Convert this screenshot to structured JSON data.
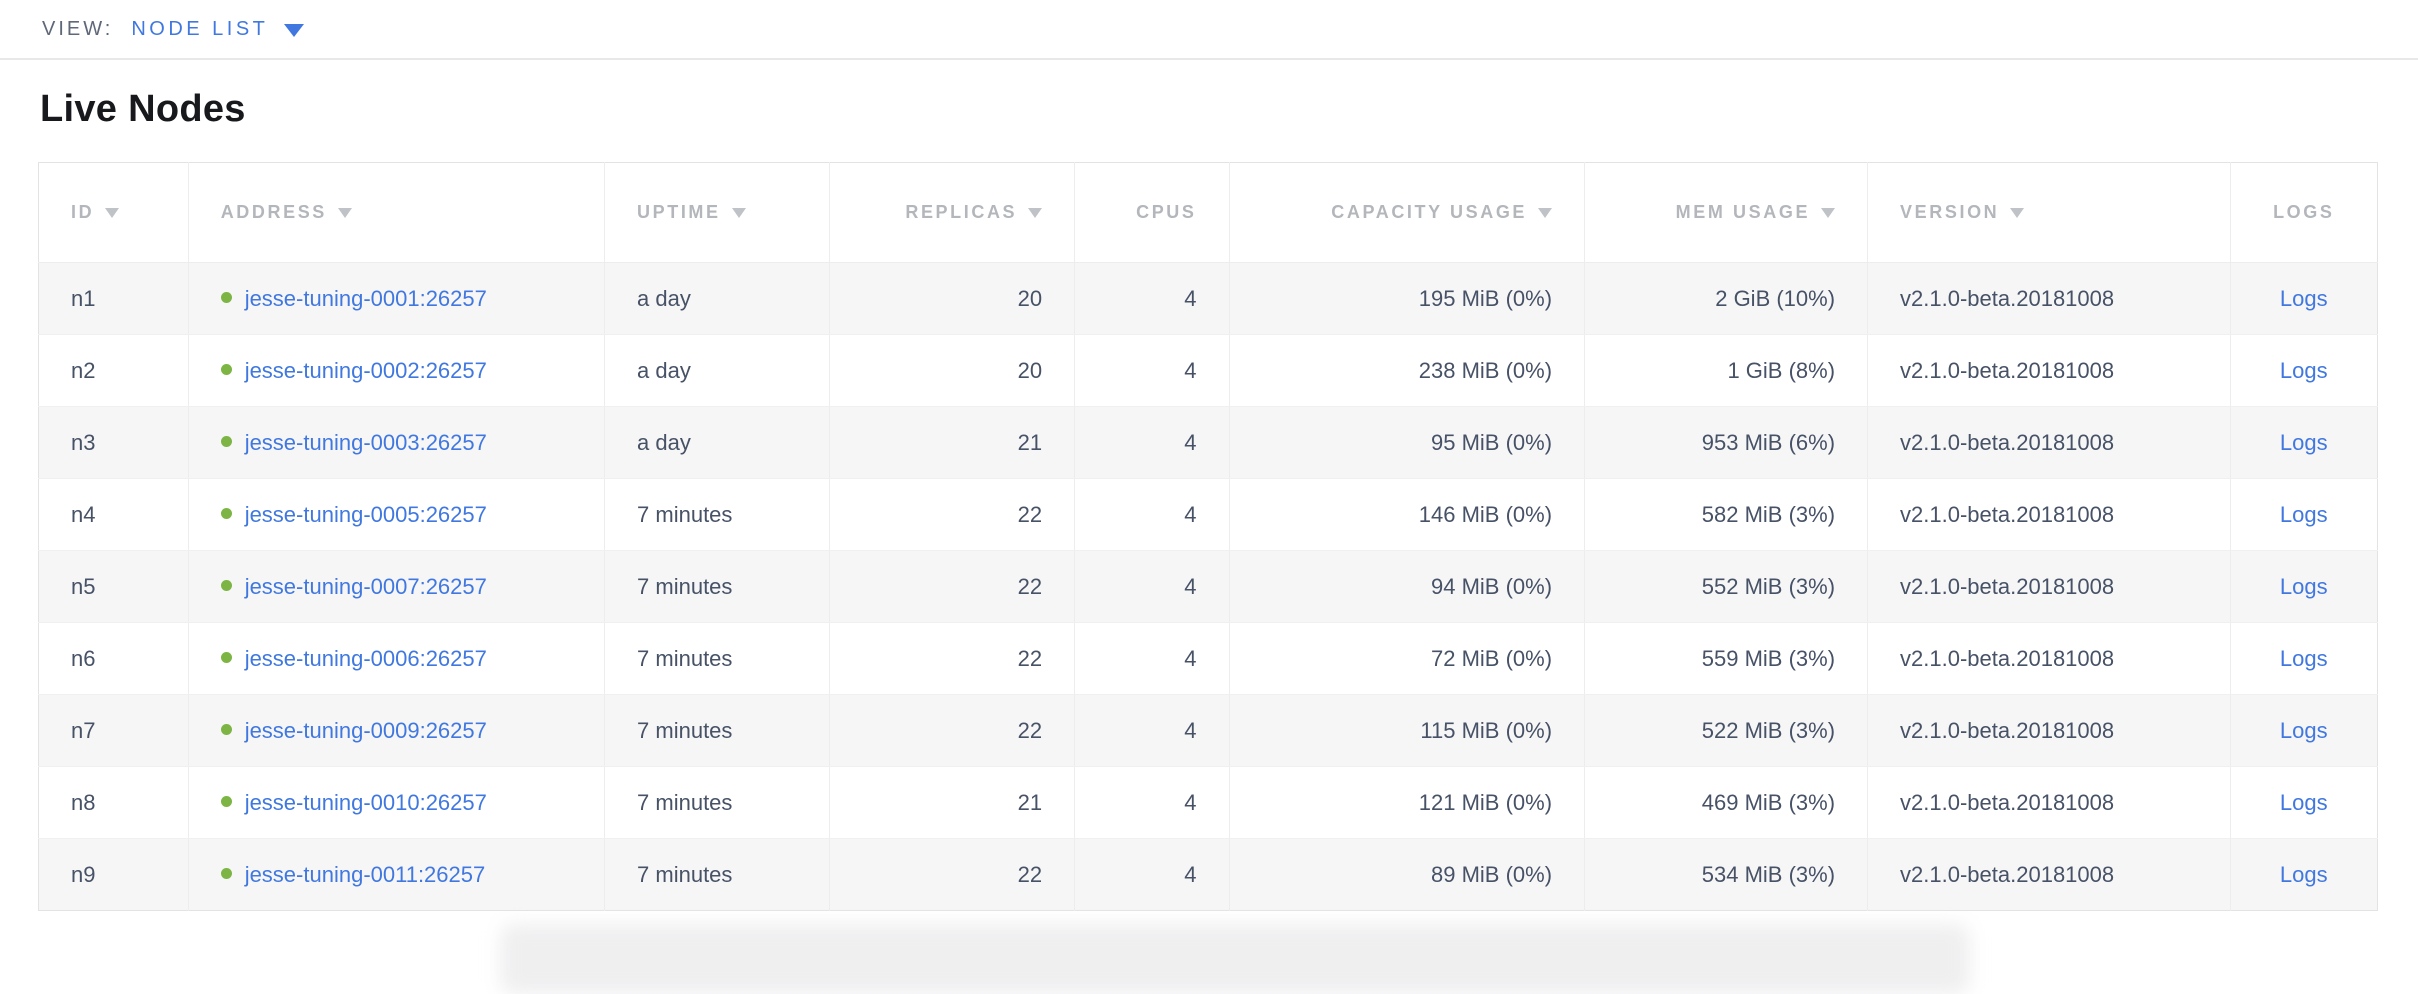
{
  "view_bar": {
    "label": "VIEW:",
    "selected": "NODE LIST"
  },
  "page": {
    "title": "Live Nodes"
  },
  "table": {
    "columns": [
      {
        "label": "ID",
        "sortable": true
      },
      {
        "label": "ADDRESS",
        "sortable": true
      },
      {
        "label": "UPTIME",
        "sortable": true
      },
      {
        "label": "REPLICAS",
        "sortable": true
      },
      {
        "label": "CPUS",
        "sortable": false
      },
      {
        "label": "CAPACITY USAGE",
        "sortable": true
      },
      {
        "label": "MEM USAGE",
        "sortable": true
      },
      {
        "label": "VERSION",
        "sortable": true
      },
      {
        "label": "LOGS",
        "sortable": false
      }
    ],
    "rows": [
      {
        "id": "n1",
        "address": "jesse-tuning-0001:26257",
        "uptime": "a day",
        "replicas": "20",
        "cpus": "4",
        "capacity": "195 MiB (0%)",
        "mem": "2 GiB (10%)",
        "version": "v2.1.0-beta.20181008",
        "logs": "Logs"
      },
      {
        "id": "n2",
        "address": "jesse-tuning-0002:26257",
        "uptime": "a day",
        "replicas": "20",
        "cpus": "4",
        "capacity": "238 MiB (0%)",
        "mem": "1 GiB (8%)",
        "version": "v2.1.0-beta.20181008",
        "logs": "Logs"
      },
      {
        "id": "n3",
        "address": "jesse-tuning-0003:26257",
        "uptime": "a day",
        "replicas": "21",
        "cpus": "4",
        "capacity": "95 MiB (0%)",
        "mem": "953 MiB (6%)",
        "version": "v2.1.0-beta.20181008",
        "logs": "Logs"
      },
      {
        "id": "n4",
        "address": "jesse-tuning-0005:26257",
        "uptime": "7 minutes",
        "replicas": "22",
        "cpus": "4",
        "capacity": "146 MiB (0%)",
        "mem": "582 MiB (3%)",
        "version": "v2.1.0-beta.20181008",
        "logs": "Logs"
      },
      {
        "id": "n5",
        "address": "jesse-tuning-0007:26257",
        "uptime": "7 minutes",
        "replicas": "22",
        "cpus": "4",
        "capacity": "94 MiB (0%)",
        "mem": "552 MiB (3%)",
        "version": "v2.1.0-beta.20181008",
        "logs": "Logs"
      },
      {
        "id": "n6",
        "address": "jesse-tuning-0006:26257",
        "uptime": "7 minutes",
        "replicas": "22",
        "cpus": "4",
        "capacity": "72 MiB (0%)",
        "mem": "559 MiB (3%)",
        "version": "v2.1.0-beta.20181008",
        "logs": "Logs"
      },
      {
        "id": "n7",
        "address": "jesse-tuning-0009:26257",
        "uptime": "7 minutes",
        "replicas": "22",
        "cpus": "4",
        "capacity": "115 MiB (0%)",
        "mem": "522 MiB (3%)",
        "version": "v2.1.0-beta.20181008",
        "logs": "Logs"
      },
      {
        "id": "n8",
        "address": "jesse-tuning-0010:26257",
        "uptime": "7 minutes",
        "replicas": "21",
        "cpus": "4",
        "capacity": "121 MiB (0%)",
        "mem": "469 MiB (3%)",
        "version": "v2.1.0-beta.20181008",
        "logs": "Logs"
      },
      {
        "id": "n9",
        "address": "jesse-tuning-0011:26257",
        "uptime": "7 minutes",
        "replicas": "22",
        "cpus": "4",
        "capacity": "89 MiB (0%)",
        "mem": "534 MiB (3%)",
        "version": "v2.1.0-beta.20181008",
        "logs": "Logs"
      }
    ]
  },
  "icons": {
    "view_caret": "caret-down",
    "sort_indicator": "triangle-down",
    "node_status": "green-dot"
  },
  "colors": {
    "accent_blue": "#4078e0",
    "live_green": "#7db544",
    "header_gray": "#b3b6bb",
    "cell_text": "#475266",
    "stripe": "#f6f6f7",
    "border": "#e3e3e3"
  }
}
